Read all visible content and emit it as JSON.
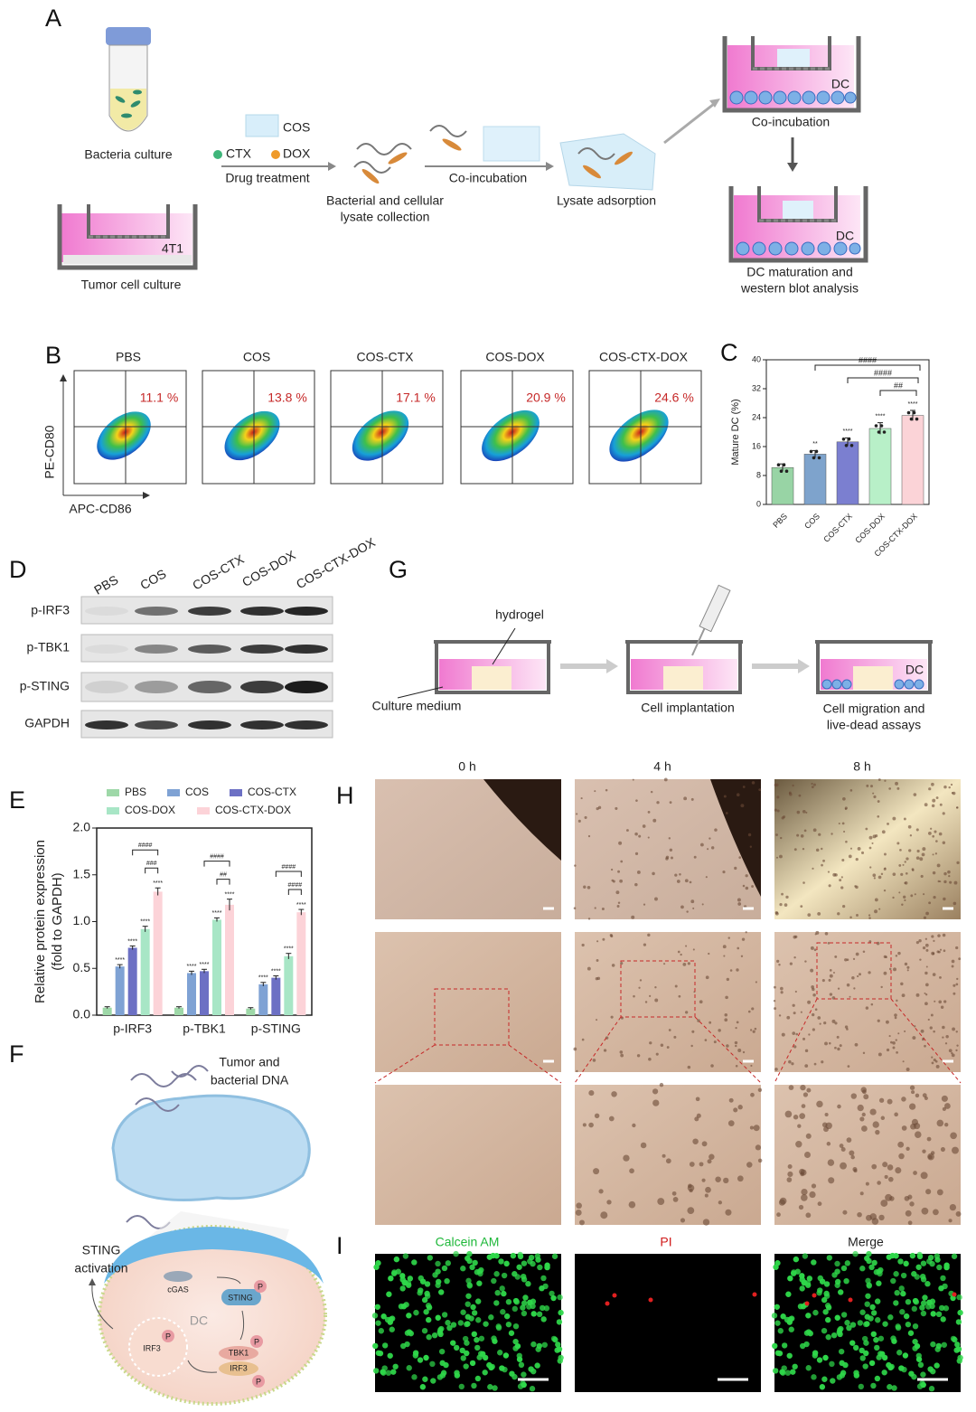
{
  "panel_labels": [
    "A",
    "B",
    "C",
    "D",
    "E",
    "F",
    "G",
    "H",
    "I"
  ],
  "panel_a": {
    "bacteria": "Bacteria culture",
    "tumor": "Tumor cell culture",
    "cell_line": "4T1",
    "cos": "COS",
    "ctx": "CTX",
    "dox": "DOX",
    "drug_treatment": "Drug treatment",
    "lysate_collection": [
      "Bacterial and cellular",
      "lysate collection"
    ],
    "co_incubation_arrow": "Co-incubation",
    "lysate_adsorption": "Lysate adsorption",
    "dc_top": "DC",
    "co_incubation_well": "Co-incubation",
    "dc_bottom": "DC",
    "maturation": [
      "DC maturation and",
      "western blot analysis"
    ]
  },
  "panel_b": {
    "x_label": "APC-CD86",
    "y_label": "PE-CD80",
    "plots": [
      {
        "title": "PBS",
        "percent": "11.1 %"
      },
      {
        "title": "COS",
        "percent": "13.8 %"
      },
      {
        "title": "COS-CTX",
        "percent": "17.1 %"
      },
      {
        "title": "COS-DOX",
        "percent": "20.9 %"
      },
      {
        "title": "COS-CTX-DOX",
        "percent": "24.6 %"
      }
    ]
  },
  "panel_d": {
    "lanes": [
      "PBS",
      "COS",
      "COS-CTX",
      "COS-DOX",
      "COS-CTX-DOX"
    ],
    "rows": [
      "p-IRF3",
      "p-TBK1",
      "p-STING",
      "GAPDH"
    ]
  },
  "panel_f": {
    "source": [
      "Tumor and",
      "bacterial DNA"
    ],
    "activation": [
      "STING",
      "activation"
    ],
    "cgas": "cGAS",
    "sting": "STING",
    "dc": "DC",
    "tbk1": "TBK1",
    "irf3_complex": "IRF3",
    "irf3_nucleus": "IRF3",
    "phospho": [
      "P",
      "P",
      "P",
      "P"
    ]
  },
  "panel_g": {
    "hydrogel": "hydrogel",
    "medium": "Culture medium",
    "implantation": "Cell implantation",
    "migration": [
      "Cell migration and",
      "live-dead assays"
    ],
    "dc": "DC"
  },
  "panel_h": {
    "times": [
      "0 h",
      "4 h",
      "8 h"
    ]
  },
  "panel_i": {
    "stains": [
      "Calcein AM",
      "PI",
      "Merge"
    ]
  },
  "chart_data": [
    {
      "type": "bar",
      "y_label": "Mature DC (%)",
      "categories": [
        "PBS",
        "COS",
        "COS-CTX",
        "COS-DOX",
        "COS-CTX-DOX"
      ],
      "values": [
        10.2,
        13.9,
        17.3,
        21.0,
        24.6
      ],
      "errors": [
        1.0,
        1.0,
        1.1,
        1.6,
        1.4
      ],
      "colors": [
        "#98d4a5",
        "#7ea3cc",
        "#7b7fd0",
        "#b8f0c8",
        "#fbd3d7"
      ],
      "significance": [
        null,
        "**",
        "****",
        "****",
        "****"
      ],
      "brackets": [
        "####",
        "####",
        "##"
      ],
      "ylim": [
        0,
        40
      ],
      "yticks": [
        0,
        8,
        16,
        24,
        32,
        40
      ]
    },
    {
      "type": "grouped-bar",
      "y_label": [
        "Relative protein expression",
        "(fold to GAPDH)"
      ],
      "categories": [
        "p-IRF3",
        "p-TBK1",
        "p-STING"
      ],
      "series": [
        {
          "name": "PBS",
          "color": "#9ed8a8",
          "values": [
            0.08,
            0.08,
            0.07
          ],
          "errors": [
            0.01,
            0.01,
            0.01
          ]
        },
        {
          "name": "COS",
          "color": "#7fa2d4",
          "values": [
            0.52,
            0.45,
            0.33
          ],
          "errors": [
            0.02,
            0.02,
            0.02
          ],
          "significance": [
            "****",
            "****",
            "****"
          ]
        },
        {
          "name": "COS-CTX",
          "color": "#6c70c4",
          "values": [
            0.72,
            0.47,
            0.4
          ],
          "errors": [
            0.02,
            0.02,
            0.02
          ],
          "significance": [
            "****",
            "****",
            "****"
          ]
        },
        {
          "name": "COS-DOX",
          "color": "#a8e6c6",
          "values": [
            0.92,
            1.02,
            0.63
          ],
          "errors": [
            0.03,
            0.02,
            0.03
          ],
          "significance": [
            "****",
            "****",
            "****"
          ]
        },
        {
          "name": "COS-CTX-DOX",
          "color": "#fcd3d8",
          "values": [
            1.32,
            1.18,
            1.1
          ],
          "errors": [
            0.04,
            0.06,
            0.03
          ],
          "significance": [
            "****",
            "****",
            "****"
          ]
        }
      ],
      "brackets": [
        [
          "####",
          "###"
        ],
        [
          "####",
          "##"
        ],
        [
          "####",
          "####"
        ]
      ],
      "ylim": [
        0,
        2
      ],
      "yticks": [
        {
          "value": 0,
          "label": "0.0"
        },
        {
          "value": 0.5,
          "label": "0.5"
        },
        {
          "value": 1,
          "label": "1.0"
        },
        {
          "value": 1.5,
          "label": "1.5"
        },
        {
          "value": 2,
          "label": "2.0"
        }
      ]
    }
  ]
}
